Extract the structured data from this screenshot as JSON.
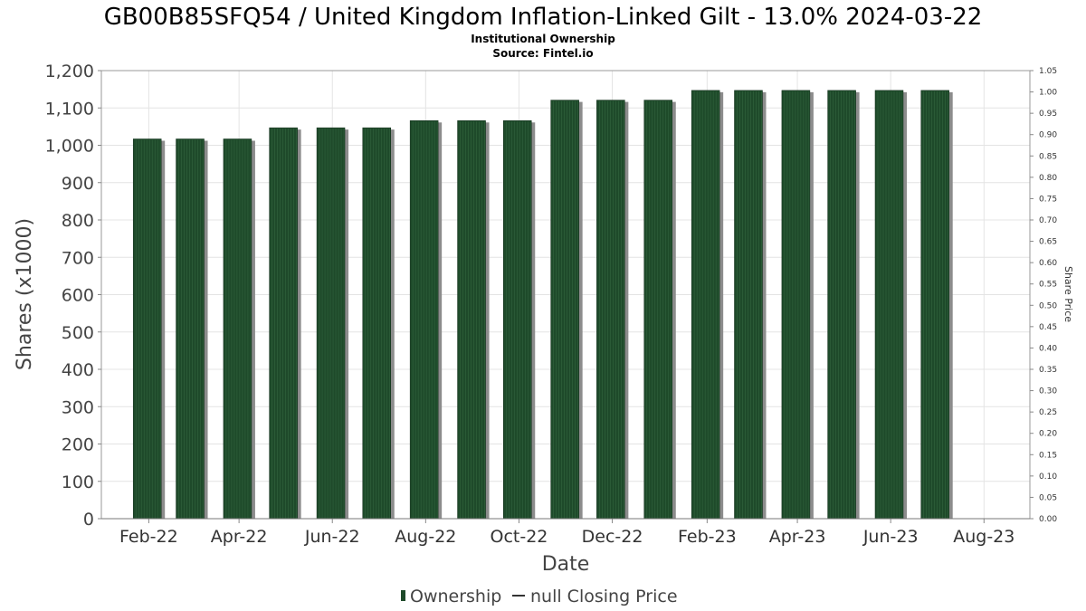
{
  "chart_data": {
    "type": "bar",
    "title": "GB00B85SFQ54 / United Kingdom Inflation-Linked Gilt - 13.0% 2024-03-22",
    "subtitle": "Institutional Ownership",
    "source": "Source: Fintel.io",
    "xlabel": "Date",
    "ylabel": "Shares (x1000)",
    "y2label": "Share Price",
    "ylim": [
      0,
      1200
    ],
    "y2lim": [
      0,
      1.05
    ],
    "yticks": [
      "0",
      "100",
      "200",
      "300",
      "400",
      "500",
      "600",
      "700",
      "800",
      "900",
      "1,000",
      "1,100",
      "1,200"
    ],
    "y2ticks": [
      "0.00",
      "0.05",
      "0.10",
      "0.15",
      "0.20",
      "0.25",
      "0.30",
      "0.35",
      "0.40",
      "0.45",
      "0.50",
      "0.55",
      "0.60",
      "0.65",
      "0.70",
      "0.75",
      "0.80",
      "0.85",
      "0.90",
      "0.95",
      "1.00",
      "1.05"
    ],
    "x_start": "2022-01-01",
    "x_end": "2023-08-31",
    "xticks": [
      {
        "label": "Feb-22",
        "date": "2022-02-01"
      },
      {
        "label": "Apr-22",
        "date": "2022-04-01"
      },
      {
        "label": "Jun-22",
        "date": "2022-06-01"
      },
      {
        "label": "Aug-22",
        "date": "2022-08-01"
      },
      {
        "label": "Oct-22",
        "date": "2022-10-01"
      },
      {
        "label": "Dec-22",
        "date": "2022-12-01"
      },
      {
        "label": "Feb-23",
        "date": "2023-02-01"
      },
      {
        "label": "Apr-23",
        "date": "2023-04-01"
      },
      {
        "label": "Jun-23",
        "date": "2023-06-01"
      },
      {
        "label": "Aug-23",
        "date": "2023-08-01"
      }
    ],
    "series": [
      {
        "name": "Ownership",
        "color": "#1e4a2a",
        "points": [
          {
            "date": "2022-01-31",
            "value": 1017
          },
          {
            "date": "2022-02-28",
            "value": 1017
          },
          {
            "date": "2022-03-31",
            "value": 1017
          },
          {
            "date": "2022-04-30",
            "value": 1047
          },
          {
            "date": "2022-05-31",
            "value": 1047
          },
          {
            "date": "2022-06-30",
            "value": 1047
          },
          {
            "date": "2022-07-31",
            "value": 1066
          },
          {
            "date": "2022-08-31",
            "value": 1066
          },
          {
            "date": "2022-09-30",
            "value": 1066
          },
          {
            "date": "2022-10-31",
            "value": 1121
          },
          {
            "date": "2022-11-30",
            "value": 1121
          },
          {
            "date": "2022-12-31",
            "value": 1121
          },
          {
            "date": "2023-01-31",
            "value": 1147
          },
          {
            "date": "2023-02-28",
            "value": 1147
          },
          {
            "date": "2023-03-31",
            "value": 1147
          },
          {
            "date": "2023-04-30",
            "value": 1147
          },
          {
            "date": "2023-05-31",
            "value": 1147
          },
          {
            "date": "2023-06-30",
            "value": 1147
          }
        ]
      },
      {
        "name": "null Closing Price",
        "color": "#333333",
        "points": []
      }
    ],
    "grid": true,
    "legend_position": "bottom-center"
  }
}
